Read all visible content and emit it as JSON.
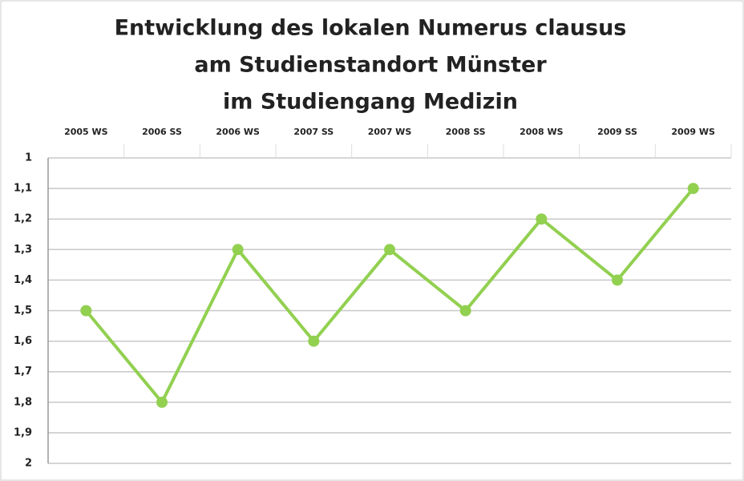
{
  "chart_data": {
    "type": "line",
    "title": [
      "Entwicklung des lokalen Numerus clausus",
      "am Studienstandort Münster",
      "im Studiengang Medizin"
    ],
    "categories": [
      "2005 WS",
      "2006 SS",
      "2006 WS",
      "2007 SS",
      "2007 WS",
      "2008 SS",
      "2008 WS",
      "2009 SS",
      "2009 WS"
    ],
    "values": [
      1.5,
      1.8,
      1.3,
      1.6,
      1.3,
      1.5,
      1.2,
      1.4,
      1.1
    ],
    "color": "#92d050",
    "ylim": [
      1,
      2
    ],
    "y_inverted": true,
    "yticks": [
      1,
      {
        "value": 1.1,
        "label": "1,1"
      },
      {
        "value": 1.2,
        "label": "1,2"
      },
      {
        "value": 1.3,
        "label": "1,3"
      },
      {
        "value": 1.4,
        "label": "1,4"
      },
      {
        "value": 1.5,
        "label": "1,5"
      },
      {
        "value": 1.6,
        "label": "1,6"
      },
      {
        "value": 1.7,
        "label": "1,7"
      },
      {
        "value": 1.8,
        "label": "1,8"
      },
      {
        "value": 1.9,
        "label": "1,9"
      },
      2
    ],
    "grid": true
  }
}
